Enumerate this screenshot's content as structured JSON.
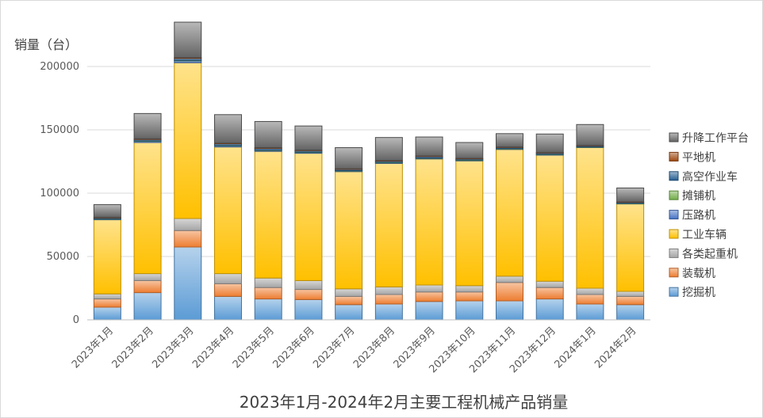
{
  "chart_data": {
    "type": "bar",
    "stacked": true,
    "title": "2023年1月-2024年2月主要工程机械产品销量",
    "ylabel": "销量（台）",
    "xlabel": "",
    "ylim": [
      0,
      240000
    ],
    "yticks": [
      0,
      50000,
      100000,
      150000,
      200000
    ],
    "ytick_labels": [
      "0",
      "50000",
      "100000",
      "150000",
      "200000"
    ],
    "grid": true,
    "legend_position": "right",
    "categories": [
      "2023年1月",
      "2023年2月",
      "2023年3月",
      "2023年4月",
      "2023年5月",
      "2023年6月",
      "2023年7月",
      "2023年8月",
      "2023年9月",
      "2023年10月",
      "2023年11月",
      "2023年12月",
      "2024年1月",
      "2024年2月"
    ],
    "series": [
      {
        "name": "挖掘机",
        "color": "#5b9bd5",
        "values": [
          10000,
          21500,
          57500,
          18500,
          16500,
          16000,
          12000,
          12500,
          14500,
          15000,
          15000,
          16500,
          12500,
          12000
        ]
      },
      {
        "name": "装载机",
        "color": "#ed7d31",
        "values": [
          6500,
          9500,
          13000,
          10000,
          9000,
          8000,
          6500,
          7500,
          7500,
          7000,
          14500,
          9000,
          7500,
          6500
        ]
      },
      {
        "name": "各类起重机",
        "color": "#a5a5a5",
        "values": [
          4000,
          5500,
          9500,
          8000,
          7500,
          7000,
          6000,
          6000,
          5500,
          5000,
          5000,
          5000,
          5000,
          4000
        ]
      },
      {
        "name": "工业车辆",
        "color": "#ffc000",
        "values": [
          58500,
          103500,
          123000,
          100000,
          100000,
          100500,
          92500,
          97500,
          99500,
          98500,
          100000,
          99500,
          111000,
          69000
        ]
      },
      {
        "name": "压路机",
        "color": "#4472c4",
        "values": [
          700,
          1000,
          1500,
          1000,
          900,
          800,
          700,
          700,
          700,
          600,
          600,
          700,
          500,
          400
        ]
      },
      {
        "name": "摊铺机",
        "color": "#70ad47",
        "values": [
          100,
          200,
          300,
          200,
          200,
          150,
          150,
          150,
          150,
          100,
          100,
          100,
          100,
          100
        ]
      },
      {
        "name": "高空作业车",
        "color": "#255e91",
        "values": [
          800,
          1200,
          1600,
          1300,
          1300,
          1200,
          1000,
          1000,
          1100,
          900,
          900,
          1000,
          800,
          800
        ]
      },
      {
        "name": "平地机",
        "color": "#9e480e",
        "values": [
          400,
          500,
          600,
          500,
          500,
          400,
          400,
          400,
          400,
          400,
          400,
          400,
          300,
          300
        ]
      },
      {
        "name": "升降工作平台",
        "color": "#636363",
        "values": [
          10000,
          20000,
          28000,
          22500,
          20700,
          19000,
          16700,
          18200,
          15000,
          12500,
          10500,
          14500,
          16500,
          11000
        ]
      }
    ]
  }
}
